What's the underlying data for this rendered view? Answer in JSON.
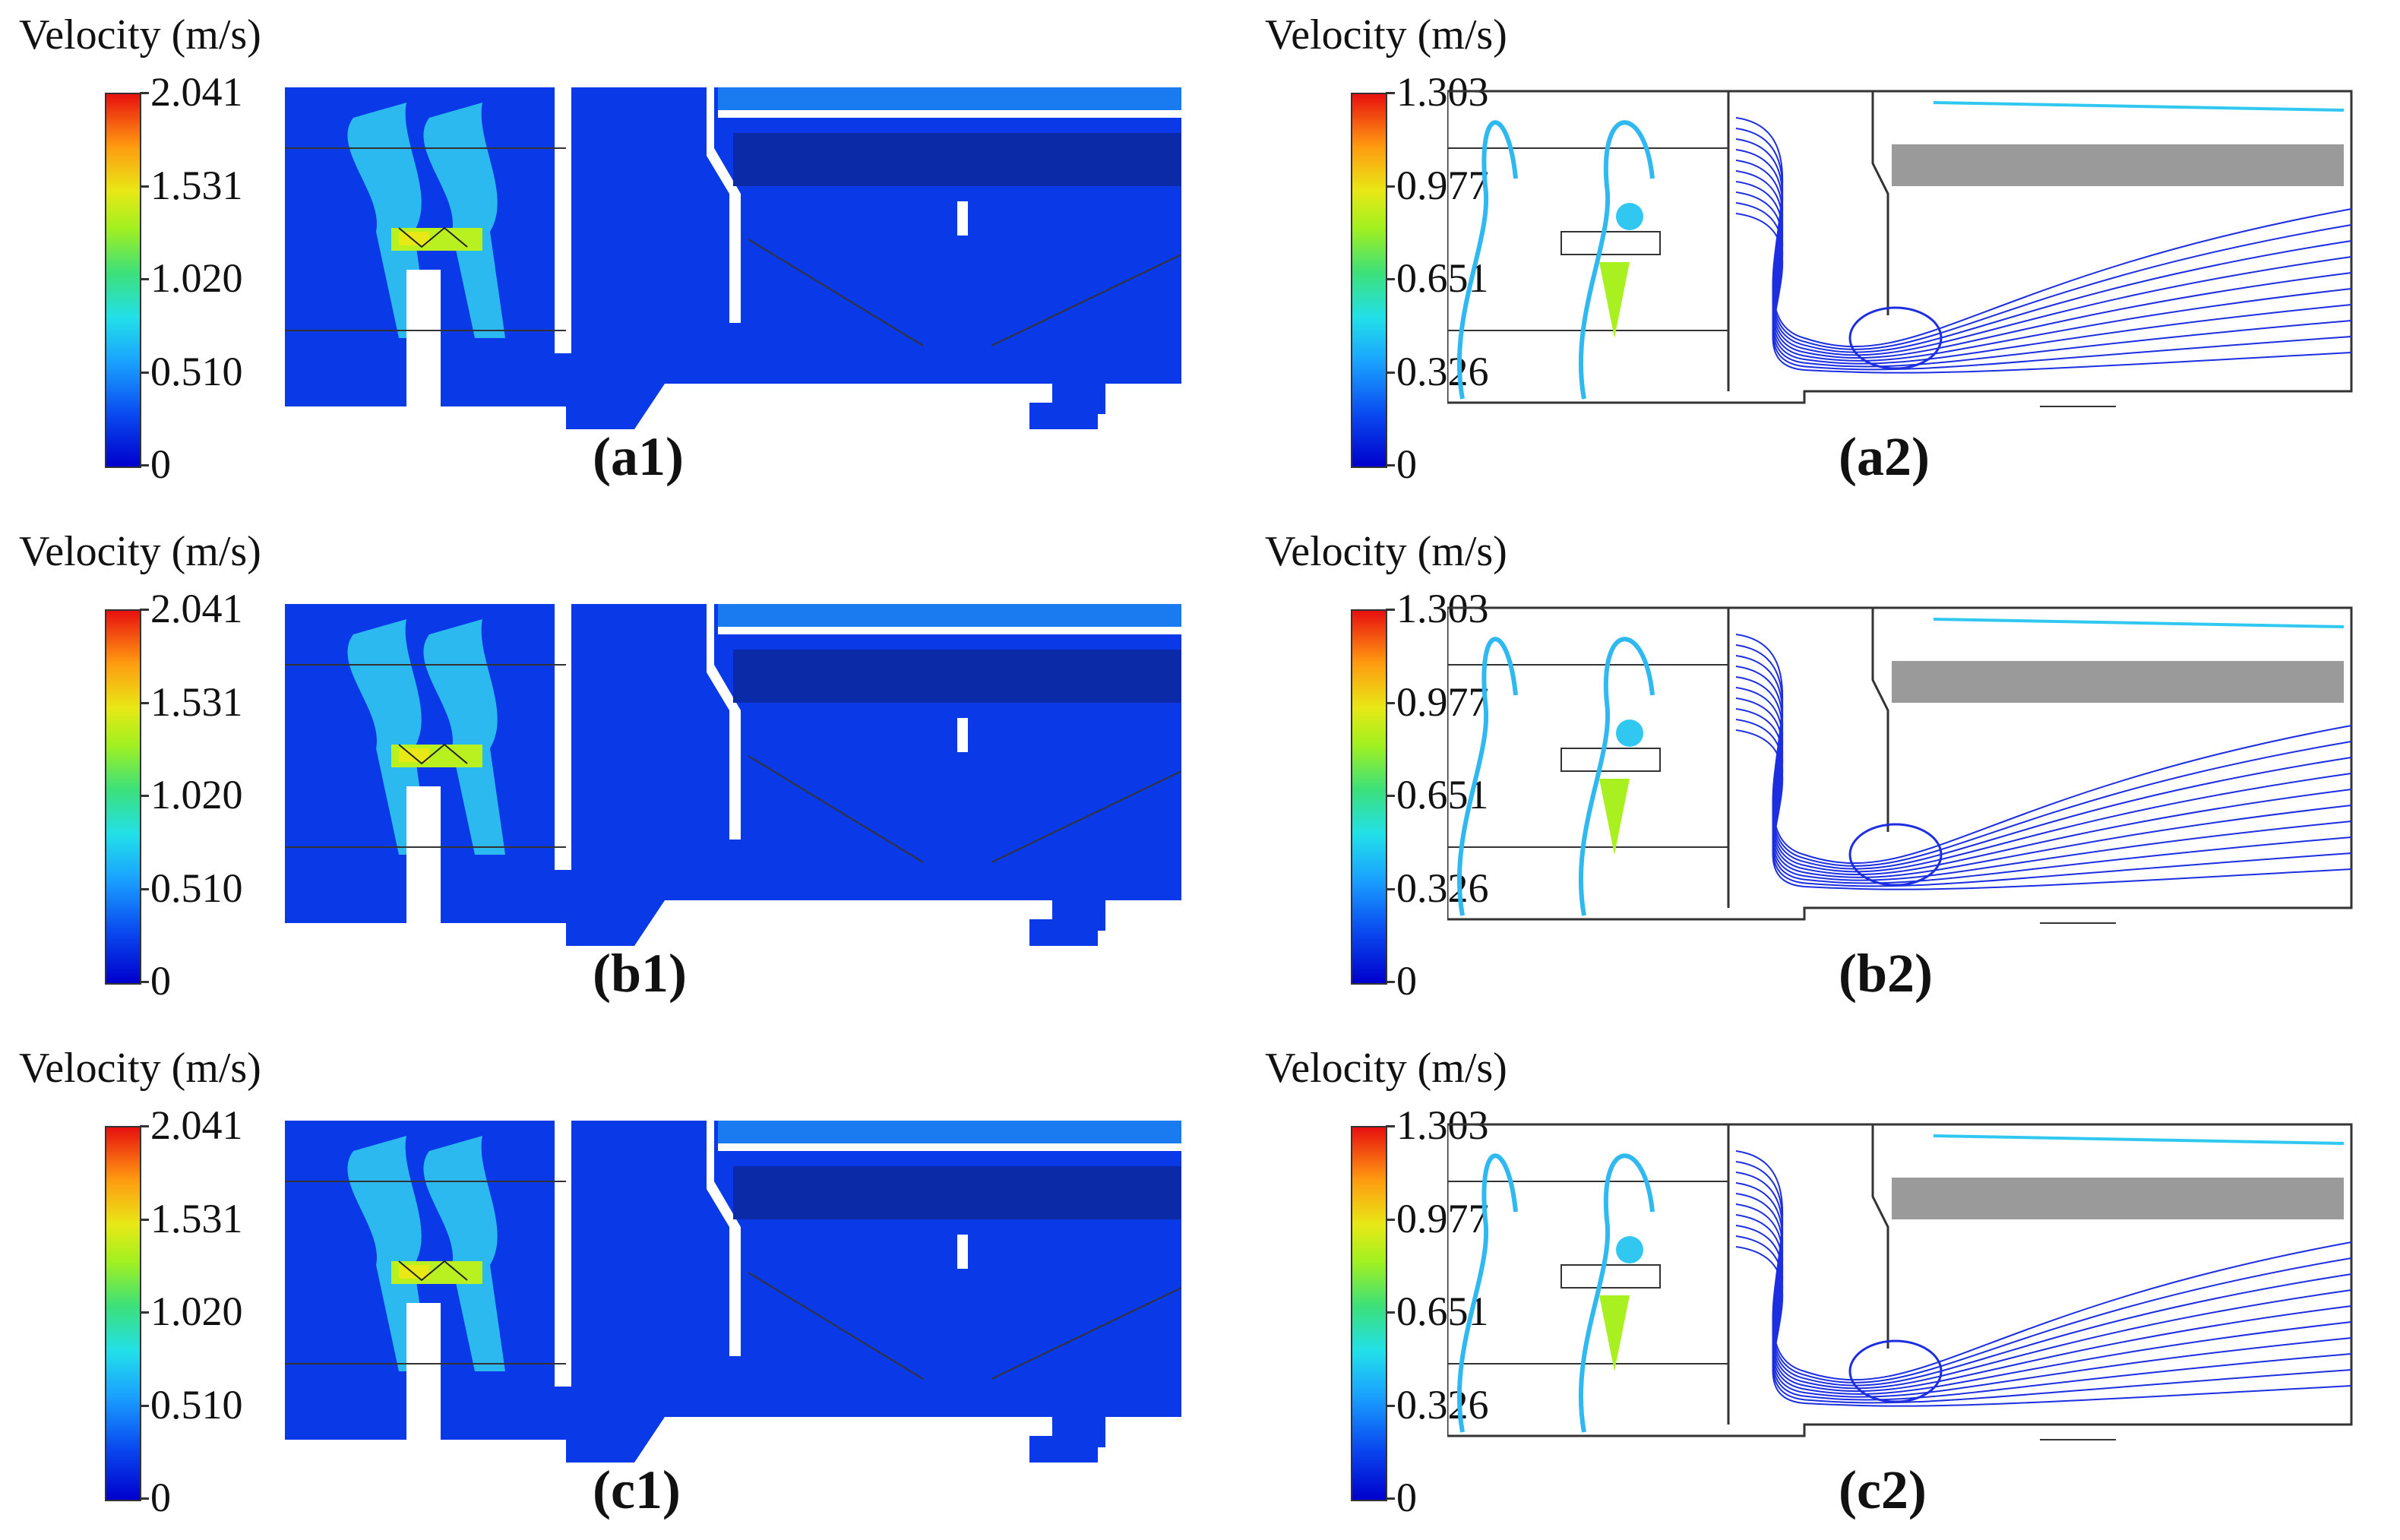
{
  "colorbar_title": "Velocity (m/s)",
  "scale_left": [
    "2.041",
    "1.531",
    "1.020",
    "0.510",
    "0"
  ],
  "scale_right": [
    "1.303",
    "0.977",
    "0.651",
    "0.326",
    "0"
  ],
  "labels": {
    "a1": "(a1)",
    "a2": "(a2)",
    "b1": "(b1)",
    "b2": "(b2)",
    "c1": "(c1)",
    "c2": "(c2)"
  },
  "colors": {
    "low": "#0a3ae8",
    "mid": "#22d4f0",
    "high": "#e81010",
    "streamline": "#1c2ee0",
    "structure": "#333333"
  }
}
